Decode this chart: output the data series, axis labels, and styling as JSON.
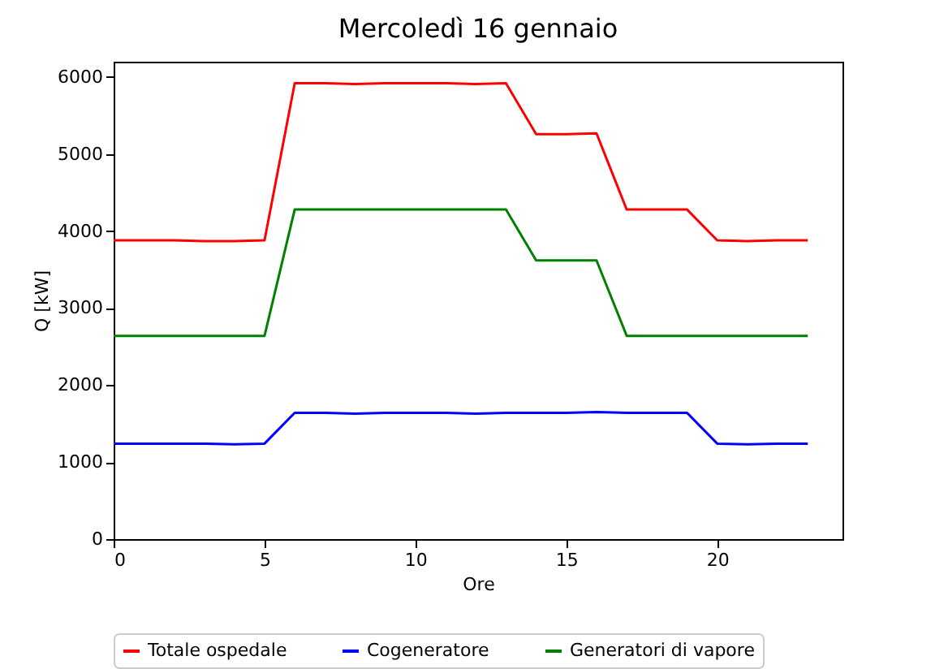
{
  "chart_data": {
    "type": "line",
    "title": "Mercoledì 16 gennaio",
    "xlabel": "Ore",
    "ylabel": "Q [kW]",
    "x": [
      0,
      1,
      2,
      3,
      4,
      5,
      6,
      7,
      8,
      9,
      10,
      11,
      12,
      13,
      14,
      15,
      16,
      17,
      18,
      19,
      20,
      21,
      22,
      23
    ],
    "series": [
      {
        "name": "Totale ospedale",
        "color": "#ff0000",
        "values": [
          3880,
          3880,
          3880,
          3870,
          3870,
          3880,
          5920,
          5920,
          5910,
          5920,
          5920,
          5920,
          5910,
          5920,
          5260,
          5260,
          5270,
          4280,
          4280,
          4280,
          3880,
          3870,
          3880,
          3880
        ]
      },
      {
        "name": "Cogeneratore",
        "color": "#0000ff",
        "values": [
          1240,
          1240,
          1240,
          1240,
          1230,
          1240,
          1640,
          1640,
          1630,
          1640,
          1640,
          1640,
          1630,
          1640,
          1640,
          1640,
          1650,
          1640,
          1640,
          1640,
          1240,
          1230,
          1240,
          1240
        ]
      },
      {
        "name": "Generatori di vapore",
        "color": "#008000",
        "values": [
          2640,
          2640,
          2640,
          2640,
          2640,
          2640,
          4280,
          4280,
          4280,
          4280,
          4280,
          4280,
          4280,
          4280,
          3620,
          3620,
          3620,
          2640,
          2640,
          2640,
          2640,
          2640,
          2640,
          2640
        ]
      }
    ],
    "xlim": [
      0,
      24.15
    ],
    "xticks": [
      0,
      5,
      10,
      15,
      20
    ],
    "ylim": [
      0,
      6200
    ],
    "yticks": [
      0,
      1000,
      2000,
      3000,
      4000,
      5000,
      6000
    ],
    "grid": false,
    "legend": "bottom",
    "marker": "none",
    "line_style": "solid"
  }
}
